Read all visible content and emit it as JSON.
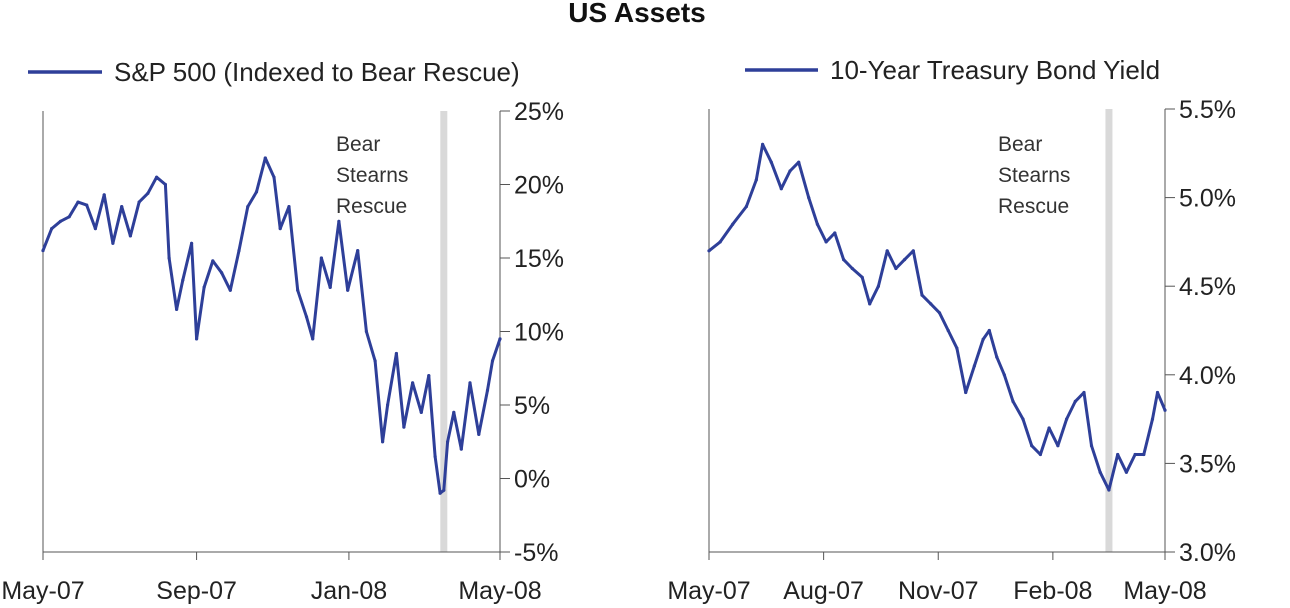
{
  "title": "US Assets",
  "annotation_label": [
    "Bear",
    "Stearns",
    "Rescue"
  ],
  "colors": {
    "series": "#2e3f99",
    "rescue_band": "#d9d9d9"
  },
  "chart_data": [
    {
      "type": "line",
      "legend": "S&P 500 (Indexed to Bear Rescue)",
      "y_axis_side": "right",
      "ylim": [
        -5,
        25
      ],
      "yticks": [
        -5,
        0,
        5,
        10,
        15,
        20,
        25
      ],
      "ytick_labels": [
        "-5%",
        "0%",
        "5%",
        "10%",
        "15%",
        "20%",
        "25%"
      ],
      "xlim": [
        "2007-05-01",
        "2008-05-01"
      ],
      "xtick_dates": [
        "2007-05-01",
        "2007-09-01",
        "2008-01-01",
        "2008-05-01"
      ],
      "xtick_labels": [
        "May-07",
        "Sep-07",
        "Jan-08",
        "May-08"
      ],
      "rescue_date": "2008-03-17",
      "series": [
        {
          "values": [
            [
              "2007-05-01",
              15.5
            ],
            [
              "2007-05-08",
              17.0
            ],
            [
              "2007-05-15",
              17.5
            ],
            [
              "2007-05-22",
              17.8
            ],
            [
              "2007-05-29",
              18.8
            ],
            [
              "2007-06-05",
              18.6
            ],
            [
              "2007-06-12",
              17.0
            ],
            [
              "2007-06-19",
              19.3
            ],
            [
              "2007-06-26",
              16.0
            ],
            [
              "2007-07-03",
              18.5
            ],
            [
              "2007-07-10",
              16.5
            ],
            [
              "2007-07-17",
              18.8
            ],
            [
              "2007-07-24",
              19.4
            ],
            [
              "2007-07-31",
              20.5
            ],
            [
              "2007-08-07",
              20.0
            ],
            [
              "2007-08-10",
              15.0
            ],
            [
              "2007-08-16",
              11.5
            ],
            [
              "2007-08-21",
              13.5
            ],
            [
              "2007-08-28",
              16.0
            ],
            [
              "2007-09-01",
              9.5
            ],
            [
              "2007-09-07",
              13.0
            ],
            [
              "2007-09-14",
              14.8
            ],
            [
              "2007-09-21",
              14.0
            ],
            [
              "2007-09-28",
              12.8
            ],
            [
              "2007-10-05",
              15.5
            ],
            [
              "2007-10-12",
              18.5
            ],
            [
              "2007-10-19",
              19.5
            ],
            [
              "2007-10-26",
              21.8
            ],
            [
              "2007-11-02",
              20.5
            ],
            [
              "2007-11-07",
              17.0
            ],
            [
              "2007-11-14",
              18.5
            ],
            [
              "2007-11-21",
              12.8
            ],
            [
              "2007-11-28",
              11.0
            ],
            [
              "2007-12-03",
              9.5
            ],
            [
              "2007-12-10",
              15.0
            ],
            [
              "2007-12-17",
              13.0
            ],
            [
              "2007-12-24",
              17.5
            ],
            [
              "2007-12-31",
              12.8
            ],
            [
              "2008-01-08",
              15.5
            ],
            [
              "2008-01-15",
              10.0
            ],
            [
              "2008-01-22",
              8.0
            ],
            [
              "2008-01-28",
              2.5
            ],
            [
              "2008-02-01",
              5.0
            ],
            [
              "2008-02-08",
              8.5
            ],
            [
              "2008-02-14",
              3.5
            ],
            [
              "2008-02-21",
              6.5
            ],
            [
              "2008-02-28",
              4.5
            ],
            [
              "2008-03-05",
              7.0
            ],
            [
              "2008-03-10",
              1.5
            ],
            [
              "2008-03-14",
              -1.0
            ],
            [
              "2008-03-17",
              -0.8
            ],
            [
              "2008-03-20",
              2.5
            ],
            [
              "2008-03-25",
              4.5
            ],
            [
              "2008-03-31",
              2.0
            ],
            [
              "2008-04-07",
              6.5
            ],
            [
              "2008-04-14",
              3.0
            ],
            [
              "2008-04-21",
              6.0
            ],
            [
              "2008-04-25",
              8.0
            ],
            [
              "2008-05-01",
              9.5
            ]
          ]
        }
      ]
    },
    {
      "type": "line",
      "legend": "10-Year Treasury Bond Yield",
      "y_axis_side": "right",
      "ylim": [
        3.0,
        5.5
      ],
      "yticks": [
        3.0,
        3.5,
        4.0,
        4.5,
        5.0,
        5.5
      ],
      "ytick_labels": [
        "3.0%",
        "3.5%",
        "4.0%",
        "4.5%",
        "5.0%",
        "5.5%"
      ],
      "xlim": [
        "2007-05-01",
        "2008-05-01"
      ],
      "xtick_dates": [
        "2007-05-01",
        "2007-08-01",
        "2007-11-01",
        "2008-02-01",
        "2008-05-01"
      ],
      "xtick_labels": [
        "May-07",
        "Aug-07",
        "Nov-07",
        "Feb-08",
        "May-08"
      ],
      "rescue_date": "2008-03-17",
      "series": [
        {
          "values": [
            [
              "2007-05-01",
              4.7
            ],
            [
              "2007-05-10",
              4.75
            ],
            [
              "2007-05-20",
              4.85
            ],
            [
              "2007-05-31",
              4.95
            ],
            [
              "2007-06-08",
              5.1
            ],
            [
              "2007-06-13",
              5.3
            ],
            [
              "2007-06-20",
              5.2
            ],
            [
              "2007-06-28",
              5.05
            ],
            [
              "2007-07-05",
              5.15
            ],
            [
              "2007-07-12",
              5.2
            ],
            [
              "2007-07-20",
              5.0
            ],
            [
              "2007-07-27",
              4.85
            ],
            [
              "2007-08-03",
              4.75
            ],
            [
              "2007-08-10",
              4.8
            ],
            [
              "2007-08-17",
              4.65
            ],
            [
              "2007-08-24",
              4.6
            ],
            [
              "2007-09-01",
              4.55
            ],
            [
              "2007-09-07",
              4.4
            ],
            [
              "2007-09-14",
              4.5
            ],
            [
              "2007-09-21",
              4.7
            ],
            [
              "2007-09-28",
              4.6
            ],
            [
              "2007-10-05",
              4.65
            ],
            [
              "2007-10-12",
              4.7
            ],
            [
              "2007-10-19",
              4.45
            ],
            [
              "2007-10-26",
              4.4
            ],
            [
              "2007-11-02",
              4.35
            ],
            [
              "2007-11-09",
              4.25
            ],
            [
              "2007-11-16",
              4.15
            ],
            [
              "2007-11-23",
              3.9
            ],
            [
              "2007-11-30",
              4.05
            ],
            [
              "2007-12-07",
              4.2
            ],
            [
              "2007-12-12",
              4.25
            ],
            [
              "2007-12-18",
              4.1
            ],
            [
              "2007-12-24",
              4.0
            ],
            [
              "2007-12-31",
              3.85
            ],
            [
              "2008-01-08",
              3.75
            ],
            [
              "2008-01-15",
              3.6
            ],
            [
              "2008-01-22",
              3.55
            ],
            [
              "2008-01-29",
              3.7
            ],
            [
              "2008-02-05",
              3.6
            ],
            [
              "2008-02-12",
              3.75
            ],
            [
              "2008-02-19",
              3.85
            ],
            [
              "2008-02-26",
              3.9
            ],
            [
              "2008-03-03",
              3.6
            ],
            [
              "2008-03-10",
              3.45
            ],
            [
              "2008-03-17",
              3.35
            ],
            [
              "2008-03-24",
              3.55
            ],
            [
              "2008-03-31",
              3.45
            ],
            [
              "2008-04-07",
              3.55
            ],
            [
              "2008-04-14",
              3.55
            ],
            [
              "2008-04-21",
              3.75
            ],
            [
              "2008-04-25",
              3.9
            ],
            [
              "2008-05-01",
              3.8
            ]
          ]
        }
      ]
    }
  ]
}
